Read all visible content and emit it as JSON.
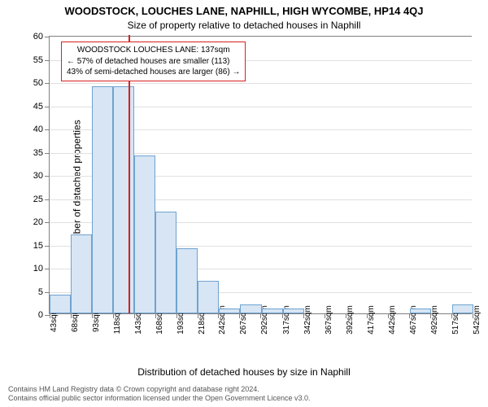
{
  "title_line1": "WOODSTOCK, LOUCHES LANE, NAPHILL, HIGH WYCOMBE, HP14 4QJ",
  "title_line2": "Size of property relative to detached houses in Naphill",
  "ylabel": "Number of detached properties",
  "xlabel": "Distribution of detached houses by size in Naphill",
  "footer_line1": "Contains HM Land Registry data © Crown copyright and database right 2024.",
  "footer_line2": "Contains official public sector information licensed under the Open Government Licence v3.0.",
  "chart": {
    "type": "histogram",
    "ylim": [
      0,
      60
    ],
    "ytick_step": 5,
    "xticks": [
      43,
      68,
      93,
      118,
      143,
      168,
      193,
      218,
      242,
      267,
      292,
      317,
      342,
      367,
      392,
      417,
      442,
      467,
      492,
      517,
      542
    ],
    "xtick_suffix": "sqm",
    "bin_start": 43,
    "bin_width": 25,
    "values": [
      4,
      17,
      49,
      49,
      34,
      22,
      14,
      7,
      1,
      2,
      1,
      1,
      0,
      0,
      0,
      0,
      0,
      1,
      0,
      2
    ],
    "bar_fill": "#d7e5f4",
    "bar_stroke": "#6fa3d0",
    "grid_color": "#e0e0e0",
    "axis_color": "#808080",
    "background": "#ffffff",
    "marker": {
      "value": 137,
      "color": "#d62020"
    },
    "annotation": {
      "lines": [
        "WOODSTOCK LOUCHES LANE: 137sqm",
        "← 57% of detached houses are smaller (113)",
        "43% of semi-detached houses are larger (86) →"
      ],
      "border_color": "#d62020",
      "text_color": "#000000",
      "bg_color": "#ffffff",
      "fontsize": 10
    },
    "title_fontsize": 13,
    "subtitle_fontsize": 12,
    "label_fontsize": 12,
    "tick_fontsize": 11,
    "xtick_fontsize": 10
  }
}
